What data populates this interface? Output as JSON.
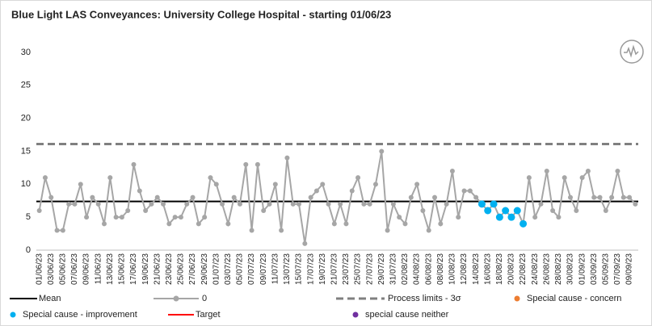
{
  "chart_data": {
    "type": "line",
    "title": "Blue Light LAS Conveyances: University College Hospital - starting 01/06/23",
    "categories": [
      "01/06/23",
      null,
      "03/06/23",
      null,
      "05/06/23",
      null,
      "07/06/23",
      null,
      "09/06/23",
      null,
      "11/06/23",
      null,
      "13/06/23",
      null,
      "15/06/23",
      null,
      "17/06/23",
      null,
      "19/06/23",
      null,
      "21/06/23",
      null,
      "23/06/23",
      null,
      "25/06/23",
      null,
      "27/06/23",
      null,
      "29/06/23",
      null,
      "01/07/23",
      null,
      "03/07/23",
      null,
      "05/07/23",
      null,
      "07/07/23",
      null,
      "09/07/23",
      null,
      "11/07/23",
      null,
      "13/07/23",
      null,
      "15/07/23",
      null,
      "17/07/23",
      null,
      "19/07/23",
      null,
      "21/07/23",
      null,
      "23/07/23",
      null,
      "25/07/23",
      null,
      "27/07/23",
      null,
      "29/07/23",
      null,
      "31/07/23",
      null,
      "02/08/23",
      null,
      "04/08/23",
      null,
      "06/08/23",
      null,
      "08/08/23",
      null,
      "10/08/23",
      null,
      "12/08/23",
      null,
      "14/08/23",
      null,
      "16/08/23",
      null,
      "18/08/23",
      null,
      "20/08/23",
      null,
      "22/08/23",
      null,
      "24/08/23",
      null,
      "26/08/23",
      null,
      "28/08/23",
      null,
      "30/08/23",
      null,
      "01/09/23",
      null,
      "03/09/23",
      null,
      "05/09/23",
      null,
      "07/09/23",
      null,
      "09/09/23",
      null
    ],
    "series": [
      {
        "name": "0",
        "color": "#a6a6a6",
        "values": [
          6,
          11,
          8,
          3,
          3,
          7,
          7,
          10,
          5,
          8,
          7,
          4,
          11,
          5,
          5,
          6,
          13,
          9,
          6,
          7,
          8,
          7,
          4,
          5,
          5,
          7,
          8,
          4,
          5,
          11,
          10,
          7,
          4,
          8,
          7,
          13,
          3,
          13,
          6,
          7,
          10,
          3,
          14,
          7,
          7,
          1,
          8,
          9,
          10,
          7,
          4,
          7,
          4,
          9,
          11,
          7,
          7,
          10,
          15,
          3,
          7,
          5,
          4,
          8,
          10,
          6,
          3,
          8,
          4,
          7,
          12,
          5,
          9,
          9,
          8,
          7,
          6,
          7,
          5,
          6,
          5,
          6,
          4,
          11,
          5,
          7,
          12,
          6,
          5,
          11,
          8,
          6,
          11,
          12,
          8,
          8,
          6,
          8,
          12,
          8,
          8,
          7
        ],
        "point_colors": [
          "#a6a6a6",
          "#a6a6a6",
          "#a6a6a6",
          "#a6a6a6",
          "#a6a6a6",
          "#a6a6a6",
          "#a6a6a6",
          "#a6a6a6",
          "#a6a6a6",
          "#a6a6a6",
          "#a6a6a6",
          "#a6a6a6",
          "#a6a6a6",
          "#a6a6a6",
          "#a6a6a6",
          "#a6a6a6",
          "#a6a6a6",
          "#a6a6a6",
          "#a6a6a6",
          "#a6a6a6",
          "#a6a6a6",
          "#a6a6a6",
          "#a6a6a6",
          "#a6a6a6",
          "#a6a6a6",
          "#a6a6a6",
          "#a6a6a6",
          "#a6a6a6",
          "#a6a6a6",
          "#a6a6a6",
          "#a6a6a6",
          "#a6a6a6",
          "#a6a6a6",
          "#a6a6a6",
          "#a6a6a6",
          "#a6a6a6",
          "#a6a6a6",
          "#a6a6a6",
          "#a6a6a6",
          "#a6a6a6",
          "#a6a6a6",
          "#a6a6a6",
          "#a6a6a6",
          "#a6a6a6",
          "#a6a6a6",
          "#a6a6a6",
          "#a6a6a6",
          "#a6a6a6",
          "#a6a6a6",
          "#a6a6a6",
          "#a6a6a6",
          "#a6a6a6",
          "#a6a6a6",
          "#a6a6a6",
          "#a6a6a6",
          "#a6a6a6",
          "#a6a6a6",
          "#a6a6a6",
          "#a6a6a6",
          "#a6a6a6",
          "#a6a6a6",
          "#a6a6a6",
          "#a6a6a6",
          "#a6a6a6",
          "#a6a6a6",
          "#a6a6a6",
          "#a6a6a6",
          "#a6a6a6",
          "#a6a6a6",
          "#a6a6a6",
          "#a6a6a6",
          "#a6a6a6",
          "#a6a6a6",
          "#a6a6a6",
          "#a6a6a6",
          "#00b0f0",
          "#00b0f0",
          "#00b0f0",
          "#00b0f0",
          "#00b0f0",
          "#00b0f0",
          "#00b0f0",
          "#00b0f0",
          "#a6a6a6",
          "#a6a6a6",
          "#a6a6a6",
          "#a6a6a6",
          "#a6a6a6",
          "#a6a6a6",
          "#a6a6a6",
          "#a6a6a6",
          "#a6a6a6",
          "#a6a6a6",
          "#a6a6a6",
          "#a6a6a6",
          "#a6a6a6",
          "#a6a6a6",
          "#a6a6a6",
          "#a6a6a6",
          "#a6a6a6",
          "#a6a6a6",
          "#a6a6a6"
        ]
      }
    ],
    "mean": {
      "name": "Mean",
      "value": 7.4,
      "color": "#000000"
    },
    "process_limit": {
      "name": "Process limits - 3σ",
      "value": 16.1,
      "color": "#808080"
    },
    "legend_markers": [
      {
        "name": "Special cause - concern",
        "color": "#ed7d31"
      },
      {
        "name": "Special cause  - improvement",
        "color": "#00b0f0"
      },
      {
        "name": "Target",
        "color": "#ff0000"
      },
      {
        "name": "special cause neither",
        "color": "#7030a0"
      }
    ],
    "ylim": [
      0,
      30
    ],
    "yticks": [
      0,
      5,
      10,
      15,
      20,
      25,
      30
    ],
    "grid": false
  }
}
